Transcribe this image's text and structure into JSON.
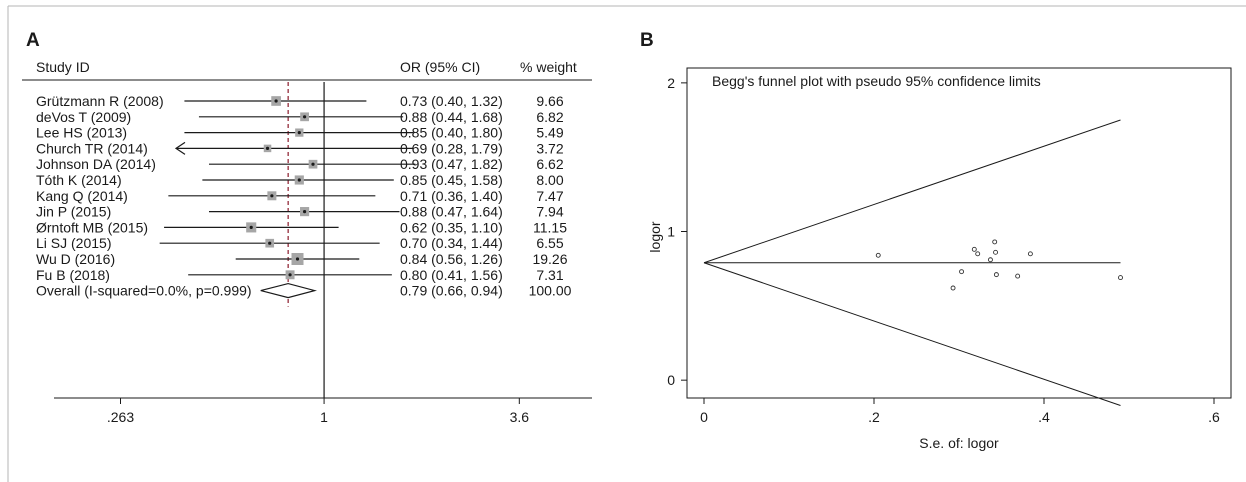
{
  "chart_data": [
    {
      "type": "forest",
      "panel_label": "A",
      "columns": {
        "study": "Study ID",
        "estimate": "OR (95% CI)",
        "weight": "% weight"
      },
      "x_scale": "log",
      "x_ticks": [
        {
          "value": 0.263,
          "label": ".263"
        },
        {
          "value": 1,
          "label": "1"
        },
        {
          "value": 3.6,
          "label": "3.6"
        }
      ],
      "xlim": [
        0.17,
        5.8
      ],
      "overall_reference": 0.79,
      "null_line": 1,
      "studies": [
        {
          "study": "Grützmann R (2008)",
          "or": 0.73,
          "lo": 0.4,
          "hi": 1.32,
          "ci_text": "0.73 (0.40, 1.32)",
          "weight": 9.66,
          "weight_text": "9.66"
        },
        {
          "study": "deVos T (2009)",
          "or": 0.88,
          "lo": 0.44,
          "hi": 1.68,
          "ci_text": "0.88 (0.44, 1.68)",
          "weight": 6.82,
          "weight_text": "6.82"
        },
        {
          "study": "Lee HS (2013)",
          "or": 0.85,
          "lo": 0.4,
          "hi": 1.8,
          "ci_text": "0.85 (0.40, 1.80)",
          "weight": 5.49,
          "weight_text": "5.49"
        },
        {
          "study": "Church TR (2014)",
          "or": 0.69,
          "lo": 0.28,
          "hi": 1.79,
          "ci_text": "0.69 (0.28, 1.79)",
          "weight": 3.72,
          "weight_text": "3.72",
          "ci_truncated_low": true
        },
        {
          "study": "Johnson DA (2014)",
          "or": 0.93,
          "lo": 0.47,
          "hi": 1.82,
          "ci_text": "0.93 (0.47, 1.82)",
          "weight": 6.62,
          "weight_text": "6.62"
        },
        {
          "study": "Tóth K (2014)",
          "or": 0.85,
          "lo": 0.45,
          "hi": 1.58,
          "ci_text": "0.85 (0.45, 1.58)",
          "weight": 8.0,
          "weight_text": "8.00"
        },
        {
          "study": "Kang Q (2014)",
          "or": 0.71,
          "lo": 0.36,
          "hi": 1.4,
          "ci_text": "0.71 (0.36, 1.40)",
          "weight": 7.47,
          "weight_text": "7.47"
        },
        {
          "study": "Jin P (2015)",
          "or": 0.88,
          "lo": 0.47,
          "hi": 1.64,
          "ci_text": "0.88 (0.47, 1.64)",
          "weight": 7.94,
          "weight_text": "7.94"
        },
        {
          "study": "Ørntoft MB (2015)",
          "or": 0.62,
          "lo": 0.35,
          "hi": 1.1,
          "ci_text": "0.62 (0.35, 1.10)",
          "weight": 11.15,
          "weight_text": "11.15"
        },
        {
          "study": "Li SJ (2015)",
          "or": 0.7,
          "lo": 0.34,
          "hi": 1.44,
          "ci_text": "0.70 (0.34, 1.44)",
          "weight": 6.55,
          "weight_text": "6.55"
        },
        {
          "study": "Wu D (2016)",
          "or": 0.84,
          "lo": 0.56,
          "hi": 1.26,
          "ci_text": "0.84 (0.56, 1.26)",
          "weight": 19.26,
          "weight_text": "19.26"
        },
        {
          "study": "Fu B (2018)",
          "or": 0.8,
          "lo": 0.41,
          "hi": 1.56,
          "ci_text": "0.80 (0.41, 1.56)",
          "weight": 7.31,
          "weight_text": "7.31"
        }
      ],
      "overall": {
        "label": "Overall (I-squared=0.0%, p=0.999)",
        "or": 0.79,
        "lo": 0.66,
        "hi": 0.94,
        "ci_text": "0.79 (0.66, 0.94)",
        "weight_text": "100.00"
      }
    },
    {
      "type": "scatter",
      "panel_label": "B",
      "title": "Begg's funnel plot with pseudo 95% confidence limits",
      "xlabel": "S.e. of: logor",
      "ylabel": "logor",
      "x_ticks": [
        {
          "value": 0,
          "label": "0"
        },
        {
          "value": 0.2,
          "label": ".2"
        },
        {
          "value": 0.4,
          "label": ".4"
        },
        {
          "value": 0.6,
          "label": ".6"
        }
      ],
      "y_ticks": [
        {
          "value": 0,
          "label": "0"
        },
        {
          "value": 1,
          "label": "1"
        },
        {
          "value": 2,
          "label": "2"
        }
      ],
      "xlim": [
        -0.02,
        0.62
      ],
      "ylim": [
        -0.12,
        2.1
      ],
      "grid": false,
      "pooled_estimate": 0.79,
      "funnel_x_max": 0.49,
      "points": [
        {
          "x": 0.205,
          "y": 0.84
        },
        {
          "x": 0.293,
          "y": 0.62
        },
        {
          "x": 0.303,
          "y": 0.73
        },
        {
          "x": 0.318,
          "y": 0.88
        },
        {
          "x": 0.322,
          "y": 0.85
        },
        {
          "x": 0.337,
          "y": 0.81
        },
        {
          "x": 0.342,
          "y": 0.93
        },
        {
          "x": 0.343,
          "y": 0.86
        },
        {
          "x": 0.344,
          "y": 0.71
        },
        {
          "x": 0.369,
          "y": 0.7
        },
        {
          "x": 0.384,
          "y": 0.85
        },
        {
          "x": 0.49,
          "y": 0.69
        }
      ]
    }
  ]
}
